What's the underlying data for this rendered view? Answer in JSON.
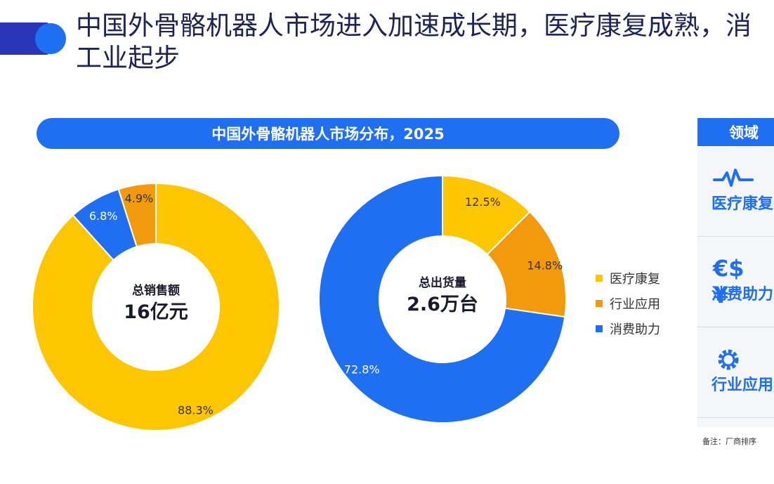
{
  "page": {
    "title_line1": "中国外骨骼机器人市场进入加速成长期，医疗康复成熟，消",
    "title_line2": "工业起步"
  },
  "chart_data": [
    {
      "type": "pie",
      "banner": "中国外骨骼机器人市场分布，2025",
      "center_label": "总销售额",
      "center_value": "16亿元",
      "categories": [
        "医疗康复",
        "消费助力",
        "行业应用"
      ],
      "values": [
        88.3,
        6.8,
        4.9
      ],
      "labels": [
        "88.3%",
        "6.8%",
        "4.9%"
      ],
      "colors": [
        "#fec600",
        "#1e6ff2",
        "#f39a0c"
      ]
    },
    {
      "type": "pie",
      "center_label": "总出货量",
      "center_value": "2.6万台",
      "categories": [
        "医疗康复",
        "行业应用",
        "消费助力"
      ],
      "values": [
        12.5,
        14.8,
        72.8
      ],
      "labels": [
        "12.5%",
        "14.8%",
        "72.8%"
      ],
      "colors": [
        "#fec600",
        "#f39a0c",
        "#1e6ff2"
      ]
    }
  ],
  "legend": [
    {
      "label": "医疗康复",
      "color": "#fec600"
    },
    {
      "label": "行业应用",
      "color": "#f39a0c"
    },
    {
      "label": "消费助力",
      "color": "#1e6ff2"
    }
  ],
  "side_panel": {
    "header": "领域",
    "rows": [
      {
        "label": "医疗康复",
        "icon": "heartbeat-icon"
      },
      {
        "label": "消费助力",
        "icon": "currency-icon"
      },
      {
        "label": "行业应用",
        "icon": "gear-icon"
      }
    ]
  },
  "footnote": "备注：厂商排序"
}
